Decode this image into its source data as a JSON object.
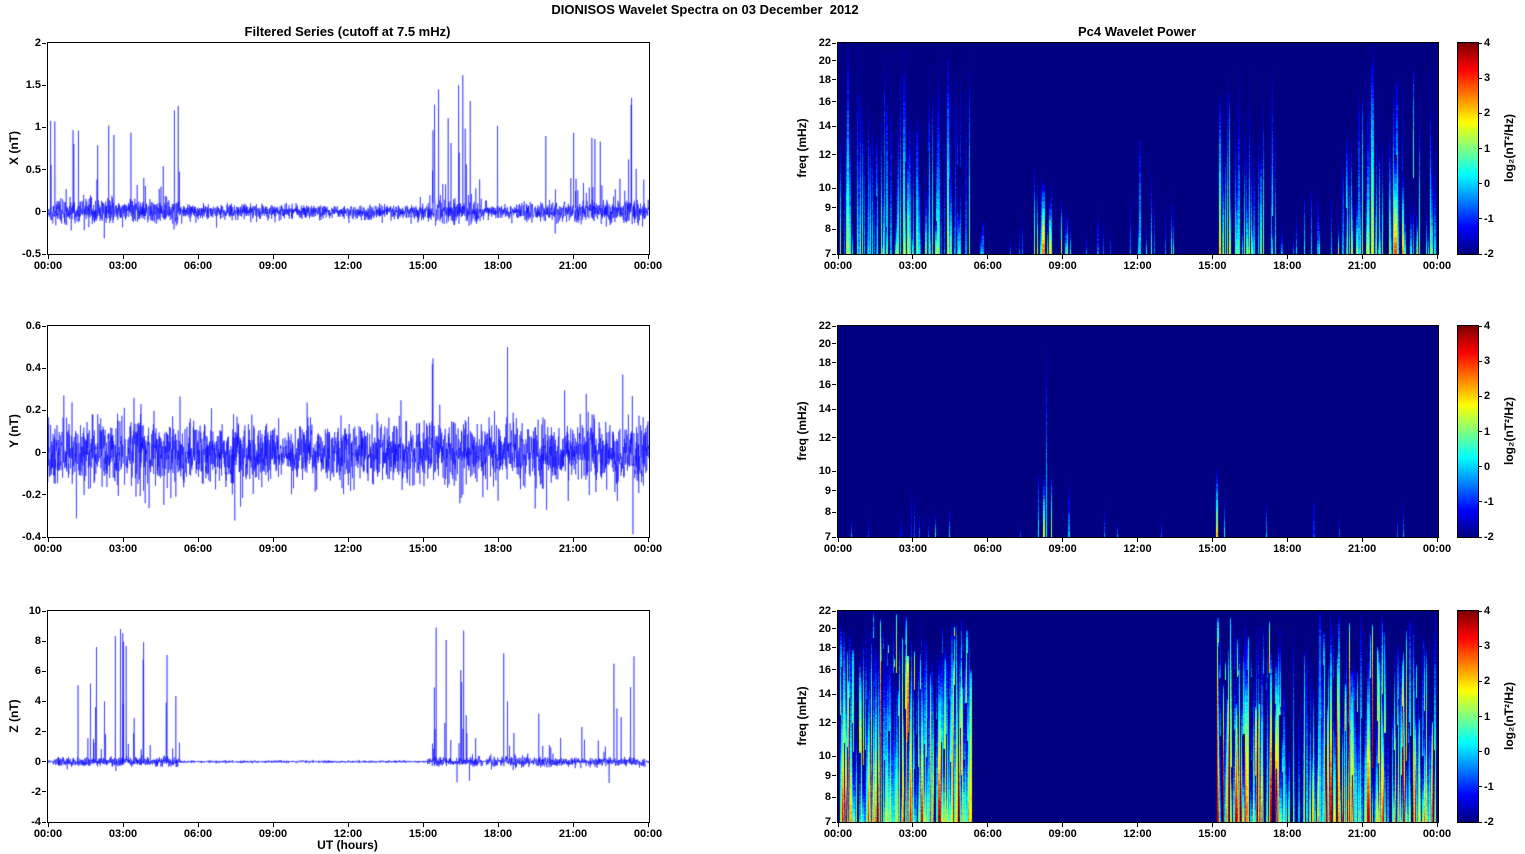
{
  "figure": {
    "title": "DIONISOS Wavelet Spectra on 03 December  2012",
    "background": "#ffffff",
    "series_color": "#0000ff",
    "axis_color": "#000000"
  },
  "chart_data": [
    {
      "id": "x-filtered-series",
      "type": "line",
      "title": "Filtered Series (cutoff at 7.5 mHz)",
      "xlabel": "",
      "ylabel": "X (nT)",
      "x_hours": [
        0,
        24
      ],
      "ylim": [
        -0.5,
        2
      ],
      "yticks": [
        -0.5,
        0,
        0.5,
        1,
        1.5,
        2
      ],
      "xticks": [
        "00:00",
        "03:00",
        "06:00",
        "09:00",
        "12:00",
        "15:00",
        "18:00",
        "21:00",
        "00:00"
      ],
      "line_color": "#0000ff",
      "signal": {
        "seed": 11,
        "base_sigma": 0.045,
        "neg_scale": 0.3,
        "spike_layer": {
          "prob": 0.004,
          "amp": 0.22
        },
        "bursts": [
          {
            "t0": 0.05,
            "t1": 5.25,
            "prob": 0.055,
            "amp": 1.55,
            "pos_bias": 0.93,
            "extra_sigma": 0.025
          },
          {
            "t0": 15.15,
            "t1": 17.35,
            "prob": 0.065,
            "amp": 1.5,
            "pos_bias": 0.93,
            "extra_sigma": 0.03
          },
          {
            "t0": 18.7,
            "t1": 20.9,
            "prob": 0.018,
            "amp": 0.95,
            "pos_bias": 0.9,
            "extra_sigma": 0.01
          },
          {
            "t0": 20.9,
            "t1": 23.85,
            "prob": 0.05,
            "amp": 1.45,
            "pos_bias": 0.92,
            "extra_sigma": 0.03
          }
        ],
        "spikes": [
          {
            "t": 17.95,
            "amp": 1.02
          },
          {
            "t": 5.05,
            "amp": 1.2
          },
          {
            "t": 23.3,
            "amp": 1.35
          },
          {
            "t": 16.4,
            "amp": 1.5
          },
          {
            "t": 15.6,
            "amp": 1.45
          }
        ]
      }
    },
    {
      "id": "y-filtered-series",
      "type": "line",
      "title": "",
      "xlabel": "",
      "ylabel": "Y (nT)",
      "x_hours": [
        0,
        24
      ],
      "ylim": [
        -0.4,
        0.6
      ],
      "yticks": [
        -0.4,
        -0.2,
        0,
        0.2,
        0.4,
        0.6
      ],
      "xticks": [
        "00:00",
        "03:00",
        "06:00",
        "09:00",
        "12:00",
        "15:00",
        "18:00",
        "21:00",
        "00:00"
      ],
      "line_color": "#0000ff",
      "signal": {
        "seed": 12,
        "base_sigma": 0.07,
        "neg_scale": 1,
        "spike_layer": {
          "prob": 0.018,
          "amp": 0.24
        },
        "bursts": [
          {
            "t0": 1.8,
            "t1": 5.0,
            "prob": 0.01,
            "amp": 0.3,
            "pos_bias": 0.55,
            "extra_sigma": 0.01
          },
          {
            "t0": 15.1,
            "t1": 16.7,
            "prob": 0.03,
            "amp": 0.4,
            "pos_bias": 0.7,
            "extra_sigma": 0.01
          },
          {
            "t0": 20.9,
            "t1": 23.7,
            "prob": 0.022,
            "amp": 0.34,
            "pos_bias": 0.65,
            "extra_sigma": 0.005
          }
        ],
        "spikes": [
          {
            "t": 18.35,
            "amp": 0.5
          },
          {
            "t": 15.35,
            "amp": 0.42
          },
          {
            "t": 22.95,
            "amp": 0.37
          }
        ]
      }
    },
    {
      "id": "z-filtered-series",
      "type": "line",
      "title": "",
      "xlabel": "UT (hours)",
      "ylabel": "Z (nT)",
      "x_hours": [
        0,
        24
      ],
      "ylim": [
        -4,
        10
      ],
      "yticks": [
        -4,
        -2,
        0,
        2,
        4,
        6,
        8,
        10
      ],
      "xticks": [
        "00:00",
        "03:00",
        "06:00",
        "09:00",
        "12:00",
        "15:00",
        "18:00",
        "21:00",
        "00:00"
      ],
      "line_color": "#0000ff",
      "signal": {
        "seed": 13,
        "base_sigma": 0.04,
        "neg_scale": 0.2,
        "spike_layer": {
          "prob": 0,
          "amp": 0
        },
        "bursts": [
          {
            "t0": 0.2,
            "t1": 5.25,
            "prob": 0.05,
            "amp": 8.8,
            "pos_bias": 0.9,
            "extra_sigma": 0.1
          },
          {
            "t0": 15.15,
            "t1": 17.35,
            "prob": 0.055,
            "amp": 9.0,
            "pos_bias": 0.9,
            "extra_sigma": 0.12
          },
          {
            "t0": 17.5,
            "t1": 21.1,
            "prob": 0.02,
            "amp": 2.6,
            "pos_bias": 0.85,
            "extra_sigma": 0.12
          },
          {
            "t0": 21.1,
            "t1": 23.85,
            "prob": 0.03,
            "amp": 7.0,
            "pos_bias": 0.88,
            "extra_sigma": 0.1
          }
        ],
        "spikes": [
          {
            "t": 18.2,
            "amp": 7.2
          },
          {
            "t": 18.35,
            "amp": 4.0
          },
          {
            "t": 19.6,
            "amp": 3.2
          },
          {
            "t": 22.6,
            "amp": 6.5
          },
          {
            "t": 23.4,
            "amp": 7.0
          },
          {
            "t": 16.6,
            "amp": 8.7
          },
          {
            "t": 15.5,
            "amp": 8.9
          },
          {
            "t": 2.9,
            "amp": 8.8
          }
        ]
      }
    },
    {
      "id": "x-wavelet-power",
      "type": "heatmap",
      "title": "Pc4 Wavelet Power",
      "ylabel": "freq (mHz)",
      "freq_range_mhz": [
        7,
        22
      ],
      "freq_scale": "log",
      "yticks": [
        7,
        8,
        9,
        10,
        12,
        14,
        16,
        18,
        20,
        22
      ],
      "xticks": [
        "00:00",
        "03:00",
        "06:00",
        "09:00",
        "12:00",
        "15:00",
        "18:00",
        "21:00",
        "00:00"
      ],
      "colorbar": {
        "label": "log₂(nT²/Hz)",
        "ticks": [
          -2,
          -1,
          0,
          1,
          2,
          3,
          4
        ],
        "range": [
          -2,
          4
        ],
        "colormap": "jet"
      },
      "background_power": -2,
      "seed": 21,
      "events": [
        {
          "t0": 0.05,
          "t1": 5.3,
          "rate": 16,
          "p": [
            -0.6,
            1.4
          ],
          "fmax": [
            8,
            22
          ],
          "k": [
            0.6,
            1.8
          ]
        },
        {
          "t0": 5.4,
          "t1": 7.7,
          "rate": 2.5,
          "p": [
            -1.0,
            0.2
          ],
          "fmax": [
            7.6,
            10
          ]
        },
        {
          "t0": 7.8,
          "t1": 9.4,
          "rate": 7,
          "p": [
            0.2,
            1.8
          ],
          "fmax": [
            8,
            12
          ]
        },
        {
          "t0": 9.5,
          "t1": 11.4,
          "rate": 2,
          "p": [
            -0.8,
            0.3
          ],
          "fmax": [
            7.6,
            10
          ]
        },
        {
          "t0": 11.5,
          "t1": 13.6,
          "rate": 5,
          "p": [
            -0.5,
            1.0
          ],
          "fmax": [
            8,
            14
          ]
        },
        {
          "t0": 14.9,
          "t1": 17.5,
          "rate": 12,
          "p": [
            -0.2,
            1.6
          ],
          "fmax": [
            8,
            20
          ]
        },
        {
          "t0": 17.6,
          "t1": 19.8,
          "rate": 4,
          "p": [
            -0.6,
            0.8
          ],
          "fmax": [
            7.8,
            12
          ]
        },
        {
          "t0": 20.0,
          "t1": 23.9,
          "rate": 14,
          "p": [
            -0.3,
            1.8
          ],
          "fmax": [
            8,
            20
          ]
        }
      ],
      "highlights": [
        {
          "t": 8.15,
          "p": 2.6,
          "fmax": 10.5,
          "w": 3
        },
        {
          "t": 8.45,
          "p": 2.1,
          "fmax": 9.5,
          "w": 2
        },
        {
          "t": 15.25,
          "p": 1.9,
          "fmax": 17,
          "w": 2
        },
        {
          "t": 22.25,
          "p": 2.9,
          "fmax": 12,
          "w": 3
        },
        {
          "t": 22.55,
          "p": 2.3,
          "fmax": 11,
          "w": 2
        },
        {
          "t": 21.35,
          "p": 1.6,
          "fmax": 22,
          "w": 2
        },
        {
          "t": 0.35,
          "p": 1.2,
          "fmax": 22,
          "w": 2
        },
        {
          "t": 2.6,
          "p": 1.3,
          "fmax": 20,
          "w": 2
        },
        {
          "t": 4.35,
          "p": 1.4,
          "fmax": 21,
          "w": 2
        }
      ]
    },
    {
      "id": "y-wavelet-power",
      "type": "heatmap",
      "title": "",
      "ylabel": "freq (mHz)",
      "freq_range_mhz": [
        7,
        22
      ],
      "freq_scale": "log",
      "yticks": [
        7,
        8,
        9,
        10,
        12,
        14,
        16,
        18,
        20,
        22
      ],
      "xticks": [
        "00:00",
        "03:00",
        "06:00",
        "09:00",
        "12:00",
        "15:00",
        "18:00",
        "21:00",
        "00:00"
      ],
      "colorbar": {
        "label": "log₂(nT²/Hz)",
        "ticks": [
          -2,
          -1,
          0,
          1,
          2,
          3,
          4
        ],
        "range": [
          -2,
          4
        ],
        "colormap": "jet"
      },
      "background_power": -2,
      "seed": 22,
      "events": [
        {
          "t0": 0.3,
          "t1": 5.0,
          "rate": 1.2,
          "p": [
            -1.2,
            -0.2
          ],
          "fmax": [
            7.5,
            9.5
          ]
        },
        {
          "t0": 2.7,
          "t1": 4.6,
          "rate": 2,
          "p": [
            -0.8,
            0.6
          ],
          "fmax": [
            7.6,
            9.5
          ]
        },
        {
          "t0": 6.6,
          "t1": 7.4,
          "rate": 1.5,
          "p": [
            -0.8,
            0.2
          ],
          "fmax": [
            7.5,
            9
          ]
        },
        {
          "t0": 7.8,
          "t1": 8.8,
          "rate": 4,
          "p": [
            0.0,
            1.4
          ],
          "fmax": [
            8,
            10
          ]
        },
        {
          "t0": 9.0,
          "t1": 9.7,
          "rate": 2,
          "p": [
            -0.5,
            0.8
          ],
          "fmax": [
            7.8,
            10
          ]
        },
        {
          "t0": 10.5,
          "t1": 13.5,
          "rate": 1,
          "p": [
            -1.0,
            -0.2
          ],
          "fmax": [
            7.5,
            9
          ]
        },
        {
          "t0": 14.9,
          "t1": 15.5,
          "rate": 3,
          "p": [
            0.4,
            1.8
          ],
          "fmax": [
            8,
            10.5
          ]
        },
        {
          "t0": 16.8,
          "t1": 17.4,
          "rate": 1.5,
          "p": [
            -0.6,
            0.4
          ],
          "fmax": [
            7.6,
            9
          ]
        },
        {
          "t0": 19.0,
          "t1": 23.5,
          "rate": 1,
          "p": [
            -1.0,
            -0.1
          ],
          "fmax": [
            7.5,
            9
          ]
        }
      ],
      "highlights": [
        {
          "t": 8.2,
          "p": 1.7,
          "fmax": 9.8,
          "w": 2
        },
        {
          "t": 8.3,
          "p": 0.4,
          "fmax": 20,
          "w": 1
        },
        {
          "t": 15.1,
          "p": 1.9,
          "fmax": 10.2,
          "w": 2
        }
      ]
    },
    {
      "id": "z-wavelet-power",
      "type": "heatmap",
      "title": "",
      "ylabel": "freq (mHz)",
      "freq_range_mhz": [
        7,
        22
      ],
      "freq_scale": "log",
      "yticks": [
        7,
        8,
        9,
        10,
        12,
        14,
        16,
        18,
        20,
        22
      ],
      "xticks": [
        "00:00",
        "03:00",
        "06:00",
        "09:00",
        "12:00",
        "15:00",
        "18:00",
        "21:00",
        "00:00"
      ],
      "colorbar": {
        "label": "log₂(nT²/Hz)",
        "ticks": [
          -2,
          -1,
          0,
          1,
          2,
          3,
          4
        ],
        "range": [
          -2,
          4
        ],
        "colormap": "jet"
      },
      "background_power": -2,
      "seed": 23,
      "events": [
        {
          "t0": 0.05,
          "t1": 5.3,
          "rate": 26,
          "p": [
            1.2,
            4.2
          ],
          "fmax": [
            14,
            22
          ],
          "k": [
            0.15,
            1.2
          ]
        },
        {
          "t0": 0.05,
          "t1": 5.3,
          "rate": 14,
          "p": [
            -0.5,
            1.5
          ],
          "fmax": [
            9,
            18
          ]
        },
        {
          "t0": 15.15,
          "t1": 17.7,
          "rate": 26,
          "p": [
            1.0,
            4.2
          ],
          "fmax": [
            13,
            22
          ],
          "k": [
            0.15,
            1.2
          ]
        },
        {
          "t0": 17.7,
          "t1": 19.4,
          "rate": 12,
          "p": [
            0.0,
            3.0
          ],
          "fmax": [
            10,
            22
          ],
          "k": [
            0.3,
            1.5
          ]
        },
        {
          "t0": 19.4,
          "t1": 23.9,
          "rate": 24,
          "p": [
            0.8,
            4.2
          ],
          "fmax": [
            12,
            22
          ],
          "k": [
            0.15,
            1.2
          ]
        },
        {
          "t0": 15.15,
          "t1": 23.9,
          "rate": 10,
          "p": [
            -0.5,
            1.5
          ],
          "fmax": [
            9,
            16
          ]
        }
      ],
      "highlights": []
    }
  ]
}
